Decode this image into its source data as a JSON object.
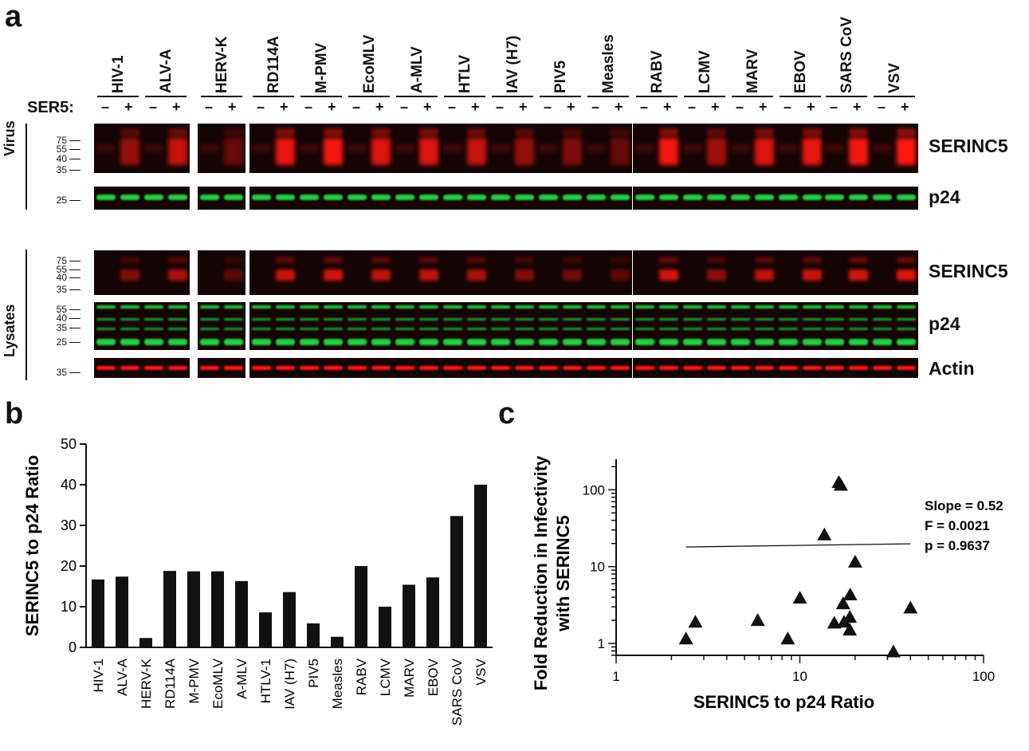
{
  "figure": {
    "panel_a": {
      "letter": "a",
      "ser5_label": "SER5:",
      "minus": "–",
      "plus": "+",
      "viruses": [
        "HIV-1",
        "ALV-A",
        "HERV-K",
        "RD114A",
        "M-PMV",
        "EcoMLV",
        "A-MLV",
        "HTLV",
        "IAV (H7)",
        "PIV5",
        "Measles",
        "RABV",
        "LCMV",
        "MARV",
        "EBOV",
        "SARS CoV",
        "VSV"
      ],
      "side_labels": {
        "virus": "Virus",
        "lysates": "Lysates"
      },
      "blot_labels": {
        "virus_serinc5": "SERINC5",
        "virus_p24": "p24",
        "lysate_serinc5": "SERINC5",
        "lysate_p24": "p24",
        "lysate_actin": "Actin"
      },
      "mw_markers": {
        "virus_serinc5": [
          "75",
          "55",
          "40",
          "35"
        ],
        "virus_p24": [
          "25"
        ],
        "lysate_serinc5": [
          "75",
          "55",
          "40",
          "35"
        ],
        "lysate_p24": [
          "55",
          "40",
          "35",
          "25"
        ],
        "lysate_actin": [
          "35"
        ]
      },
      "colors": {
        "serinc5": "#ff1a10",
        "p24": "#22d040",
        "background": "#140404"
      }
    },
    "panel_b": {
      "letter": "b"
    },
    "panel_c": {
      "letter": "c"
    }
  },
  "chart_data": [
    {
      "type": "bar",
      "panel": "b",
      "title": "",
      "xlabel": "",
      "ylabel": "SERINC5 to p24 Ratio",
      "categories": [
        "HIV-1",
        "ALV-A",
        "HERV-K",
        "RD114A",
        "M-PMV",
        "EcoMLV",
        "A-MLV",
        "HTLV-1",
        "IAV (H7)",
        "PIV5",
        "Measles",
        "RABV",
        "LCMV",
        "MARV",
        "EBOV",
        "SARS CoV",
        "VSV"
      ],
      "values": [
        16.7,
        17.4,
        2.3,
        18.8,
        18.7,
        18.7,
        16.3,
        8.6,
        13.6,
        5.9,
        2.6,
        20.0,
        10.0,
        15.4,
        17.2,
        32.3,
        40.0
      ],
      "ylim": [
        0,
        50
      ],
      "yticks": [
        "0",
        "10",
        "20",
        "30",
        "40",
        "50"
      ]
    },
    {
      "type": "scatter",
      "panel": "c",
      "title": "",
      "xlabel": "SERINC5 to p24 Ratio",
      "ylabel_line1": "Fold Reduction in Infectivity",
      "ylabel_line2": "with SERINC5",
      "xscale": "log",
      "yscale": "log",
      "xlim": [
        1,
        100
      ],
      "ylim": [
        0.7,
        250
      ],
      "xticks": [
        "1",
        "10",
        "100"
      ],
      "yticks": [
        "1",
        "10",
        "100"
      ],
      "points": [
        {
          "x": 2.4,
          "y": 1.15
        },
        {
          "x": 2.7,
          "y": 1.9
        },
        {
          "x": 5.9,
          "y": 2.0
        },
        {
          "x": 8.6,
          "y": 1.15
        },
        {
          "x": 10.0,
          "y": 3.9
        },
        {
          "x": 13.6,
          "y": 26.0
        },
        {
          "x": 15.4,
          "y": 1.85
        },
        {
          "x": 16.3,
          "y": 125.0
        },
        {
          "x": 16.7,
          "y": 115.0
        },
        {
          "x": 17.2,
          "y": 3.3
        },
        {
          "x": 17.4,
          "y": 1.9
        },
        {
          "x": 18.7,
          "y": 1.5
        },
        {
          "x": 18.7,
          "y": 2.2
        },
        {
          "x": 18.8,
          "y": 4.3
        },
        {
          "x": 20.0,
          "y": 11.5
        },
        {
          "x": 32.3,
          "y": 0.78
        },
        {
          "x": 40.0,
          "y": 2.9
        }
      ],
      "regression": {
        "x": [
          2.4,
          40.0
        ],
        "y": [
          18.0,
          19.8
        ]
      },
      "annotations": [
        "Slope = 0.52",
        "F = 0.0021",
        "p = 0.9637"
      ]
    }
  ]
}
